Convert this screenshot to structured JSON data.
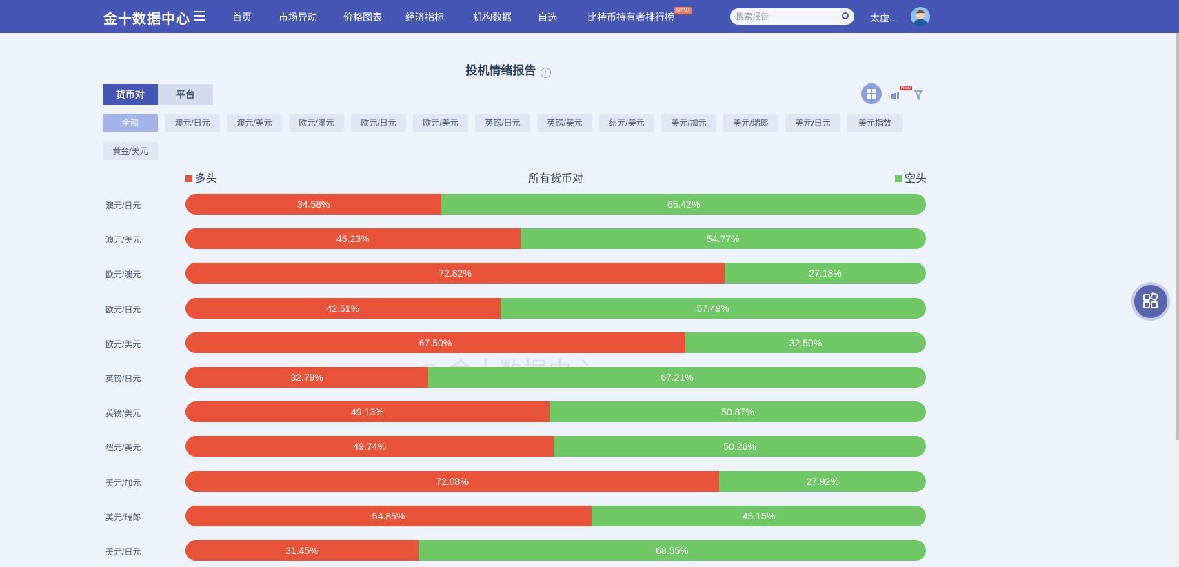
{
  "header": {
    "logo": "金十数据中心",
    "nav": [
      "首页",
      "市场异动",
      "价格图表",
      "经济指标",
      "机构数据",
      "自选",
      "比特币持有者排行榜"
    ],
    "new_badge": "NEW",
    "search_placeholder": "搜索报告",
    "user": "太虚..."
  },
  "page": {
    "title": "投机情绪报告",
    "info": "i",
    "tabs": [
      "货币对",
      "平台"
    ],
    "chips": [
      "全部",
      "澳元/日元",
      "澳元/美元",
      "欧元/澳元",
      "欧元/日元",
      "欧元/美元",
      "英镑/日元",
      "英镑/美元",
      "纽元/美元",
      "美元/加元",
      "美元/瑞郎",
      "美元/日元",
      "美元指数",
      "黄金/美元"
    ],
    "chart_new_badge": "NEW",
    "watermark": "金十数据中心"
  },
  "colors": {
    "long": "#e8533a",
    "short": "#6fc766",
    "header": "#4656b4"
  },
  "chart_data": {
    "type": "bar",
    "stacked": true,
    "title": "所有货币对",
    "legend": [
      "多头",
      "空头"
    ],
    "categories": [
      "澳元/日元",
      "澳元/美元",
      "欧元/澳元",
      "欧元/日元",
      "欧元/美元",
      "英镑/日元",
      "英镑/美元",
      "纽元/美元",
      "美元/加元",
      "美元/瑞郎",
      "美元/日元"
    ],
    "series": [
      {
        "name": "多头",
        "values": [
          34.58,
          45.23,
          72.82,
          42.51,
          67.5,
          32.79,
          49.13,
          49.74,
          72.08,
          54.85,
          31.45
        ]
      },
      {
        "name": "空头",
        "values": [
          65.42,
          54.77,
          27.18,
          57.49,
          32.5,
          67.21,
          50.87,
          50.26,
          27.92,
          45.15,
          68.55
        ]
      }
    ]
  }
}
